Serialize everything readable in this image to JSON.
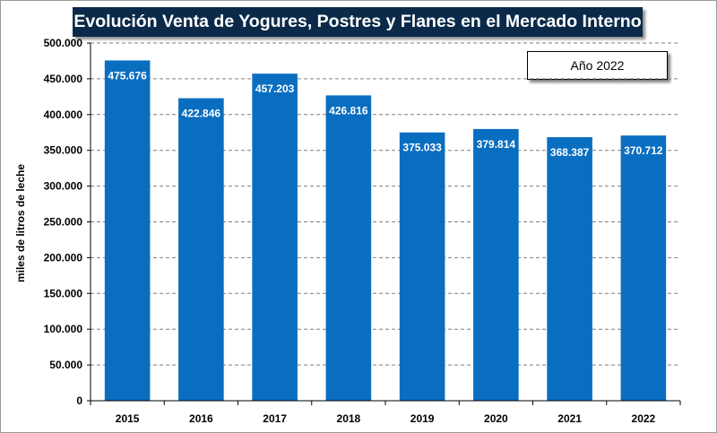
{
  "colors": {
    "bar": "#0a6ec0",
    "title_bg": "#0b2a4a",
    "grid": "#7f7f7f",
    "background": "#ffffff"
  },
  "chart_data": {
    "type": "bar",
    "title": "Evolución Venta de Yogures, Postres y Flanes en el Mercado Interno",
    "legend": "Año 2022",
    "legend_position": "top-right",
    "xlabel": "",
    "ylabel": "miles de litros de leche",
    "categories": [
      "2015",
      "2016",
      "2017",
      "2018",
      "2019",
      "2020",
      "2021",
      "2022"
    ],
    "values": [
      475676,
      422846,
      457203,
      426816,
      375033,
      379814,
      368387,
      370712
    ],
    "data_labels": [
      "475.676",
      "422.846",
      "457.203",
      "426.816",
      "375.033",
      "379.814",
      "368.387",
      "370.712"
    ],
    "ylim": [
      0,
      500000
    ],
    "yticks": [
      0,
      50000,
      100000,
      150000,
      200000,
      250000,
      300000,
      350000,
      400000,
      450000,
      500000
    ],
    "ytick_labels": [
      "0",
      "50.000",
      "100.000",
      "150.000",
      "200.000",
      "250.000",
      "300.000",
      "350.000",
      "400.000",
      "450.000",
      "500.000"
    ],
    "grid": true
  }
}
